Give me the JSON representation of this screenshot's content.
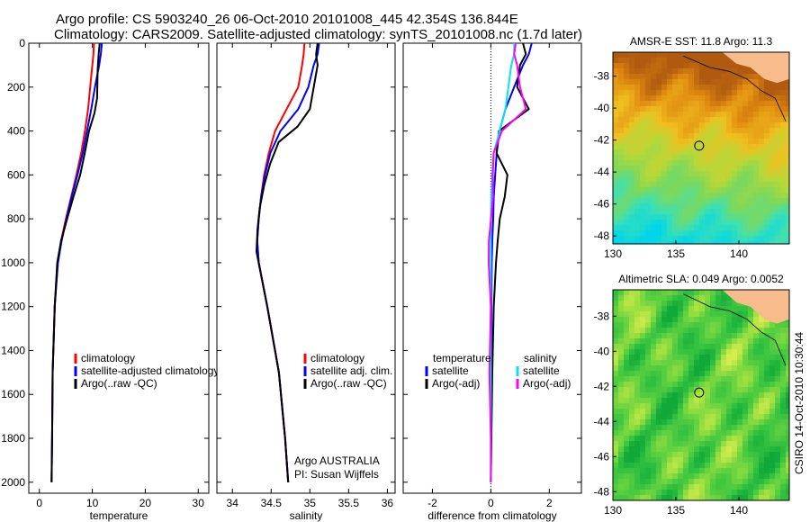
{
  "header": {
    "line1": "Argo profile: CS 5903240_26 06-Oct-2010 20101008_445 42.354S 136.844E",
    "line2": "Climatology: CARS2009. Satellite-adjusted climatology: synTS_20101008.nc (1.7d later)"
  },
  "credit": "CSIRO 14-Oct-2010 10:30:44",
  "colors": {
    "climatology": "#ff0000",
    "satellite": "#0000ff",
    "argo": "#000000",
    "salinity_satellite": "#00e5ee",
    "salinity_argo": "#ff00ff",
    "land": "#f7bb8c"
  },
  "chart_data": [
    {
      "type": "line",
      "id": "temperature",
      "xlabel": "temperature",
      "ylabel": "",
      "xlim": [
        -2,
        32
      ],
      "ylim": [
        2050,
        0
      ],
      "xticks": [
        0,
        10,
        20,
        30
      ],
      "yticks": [
        0,
        200,
        400,
        600,
        800,
        1000,
        1200,
        1400,
        1600,
        1800,
        2000
      ],
      "legend": [
        "climatology",
        "satellite-adjusted climatology",
        "Argo(..raw -QC)"
      ],
      "series": [
        {
          "name": "climatology",
          "x": [
            10.3,
            10.2,
            10.0,
            9.6,
            9.2,
            8.6,
            7.9,
            7.0,
            6.0,
            5.0,
            4.1,
            3.4,
            2.9,
            2.5,
            2.4,
            2.3
          ],
          "y": [
            0,
            50,
            100,
            200,
            300,
            400,
            500,
            600,
            700,
            800,
            900,
            1000,
            1200,
            1500,
            1800,
            2000
          ]
        },
        {
          "name": "satellite-adjusted climatology",
          "x": [
            11.8,
            11.6,
            11.3,
            10.5,
            9.8,
            9.0,
            8.2,
            7.2,
            6.1,
            5.1,
            4.2,
            3.5,
            2.9,
            2.5,
            2.4,
            2.3
          ],
          "y": [
            0,
            50,
            100,
            200,
            300,
            400,
            500,
            600,
            700,
            800,
            900,
            1000,
            1200,
            1500,
            1800,
            2000
          ]
        },
        {
          "name": "Argo(..raw -QC)",
          "x": [
            11.4,
            11.2,
            11.0,
            10.9,
            10.5,
            9.5,
            8.6,
            7.6,
            6.3,
            5.2,
            4.2,
            3.5,
            2.9,
            2.5,
            2.4,
            2.3
          ],
          "y": [
            0,
            50,
            120,
            250,
            320,
            400,
            500,
            600,
            700,
            800,
            900,
            1000,
            1200,
            1500,
            1800,
            2000
          ]
        }
      ]
    },
    {
      "type": "line",
      "id": "salinity",
      "xlabel": "salinity",
      "ylabel": "",
      "xlim": [
        33.8,
        36.1
      ],
      "ylim": [
        2050,
        0
      ],
      "xticks": [
        34,
        34.5,
        35,
        35.5,
        36
      ],
      "xticklabels": [
        "34",
        "34.5",
        "35",
        "35.5",
        "36"
      ],
      "yticks": [
        0,
        200,
        400,
        600,
        800,
        1000,
        1200,
        1400,
        1600,
        1800,
        2000
      ],
      "legend": [
        "climatology",
        "satellite adj. clim.",
        "Argo(..raw -QC)"
      ],
      "annotation": [
        "Argo AUSTRALIA",
        "PI: Susan Wijffels"
      ],
      "series": [
        {
          "name": "climatology",
          "x": [
            34.93,
            34.92,
            34.9,
            34.85,
            34.7,
            34.55,
            34.47,
            34.41,
            34.37,
            34.34,
            34.32,
            34.34,
            34.45,
            34.6,
            34.68,
            34.72
          ],
          "y": [
            0,
            50,
            100,
            200,
            300,
            400,
            500,
            600,
            700,
            800,
            900,
            1000,
            1200,
            1500,
            1800,
            2000
          ]
        },
        {
          "name": "satellite adj. clim.",
          "x": [
            35.12,
            35.1,
            35.05,
            34.98,
            34.85,
            34.62,
            34.49,
            34.42,
            34.37,
            34.34,
            34.32,
            34.34,
            34.45,
            34.6,
            34.68,
            34.72
          ],
          "y": [
            0,
            50,
            100,
            200,
            300,
            400,
            500,
            600,
            700,
            800,
            900,
            1000,
            1200,
            1500,
            1800,
            2000
          ]
        },
        {
          "name": "Argo(..raw -QC)",
          "x": [
            35.1,
            35.08,
            35.1,
            35.05,
            35.0,
            34.85,
            34.6,
            34.48,
            34.4,
            34.35,
            34.33,
            34.32,
            34.45,
            34.6,
            34.68,
            34.72
          ],
          "y": [
            0,
            50,
            100,
            200,
            300,
            380,
            450,
            550,
            650,
            750,
            850,
            950,
            1200,
            1500,
            1800,
            2000
          ]
        }
      ]
    },
    {
      "type": "line",
      "id": "difference",
      "xlabel": "difference from climatology",
      "ylabel": "",
      "xlim": [
        -3,
        3.1
      ],
      "ylim": [
        2050,
        0
      ],
      "xticks": [
        -2,
        0,
        2
      ],
      "yticks": [
        0,
        200,
        400,
        600,
        800,
        1000,
        1200,
        1400,
        1600,
        1800,
        2000
      ],
      "legend": {
        "temperature_title": "temperature",
        "temperature_items": [
          "satellite",
          "Argo(-adj)"
        ],
        "salinity_title": "salinity",
        "salinity_items": [
          "satellite",
          "Argo(-adj)"
        ]
      },
      "series": [
        {
          "name": "temperature satellite",
          "x": [
            1.4,
            1.3,
            1.1,
            0.8,
            0.5,
            0.3,
            0.2,
            0.15,
            0.1,
            0.08,
            0.05,
            0.03,
            0.02,
            0.02,
            0.01,
            0.0
          ],
          "y": [
            0,
            50,
            100,
            200,
            300,
            400,
            500,
            600,
            700,
            800,
            900,
            1000,
            1200,
            1500,
            1800,
            2000
          ]
        },
        {
          "name": "temperature Argo(-adj)",
          "x": [
            1.1,
            1.2,
            1.0,
            0.9,
            1.3,
            0.3,
            0.2,
            0.55,
            0.45,
            0.3,
            0.25,
            0.2,
            0.1,
            0.05,
            0.02,
            0.0
          ],
          "y": [
            0,
            50,
            100,
            200,
            300,
            400,
            500,
            600,
            700,
            800,
            900,
            1000,
            1200,
            1500,
            1800,
            2000
          ]
        },
        {
          "name": "salinity satellite",
          "x": [
            0.8,
            0.8,
            0.7,
            0.6,
            0.5,
            0.3,
            0.1,
            0.05,
            0.02,
            0.0,
            0.0,
            0.0,
            0.0,
            0.0,
            0.0,
            0.0
          ],
          "y": [
            0,
            50,
            100,
            200,
            300,
            400,
            500,
            600,
            700,
            800,
            900,
            1000,
            1200,
            1500,
            1800,
            2000
          ]
        },
        {
          "name": "salinity Argo(-adj)",
          "x": [
            0.85,
            0.8,
            0.9,
            1.0,
            1.2,
            0.4,
            0.1,
            0.05,
            0.05,
            0.0,
            -0.05,
            -0.05,
            0.0,
            -0.05,
            0.0,
            0.0
          ],
          "y": [
            0,
            50,
            100,
            200,
            300,
            400,
            500,
            600,
            700,
            800,
            900,
            1000,
            1200,
            1500,
            1800,
            2000
          ]
        }
      ]
    },
    {
      "type": "heatmap",
      "id": "sst-map",
      "title": "AMSR-E SST: 11.8 Argo: 11.3",
      "xlim": [
        130,
        144
      ],
      "ylim": [
        -48.5,
        -36.5
      ],
      "xticks": [
        130,
        135,
        140
      ],
      "yticks": [
        -38,
        -40,
        -42,
        -44,
        -46,
        -48
      ],
      "argo_marker": {
        "lon": 136.844,
        "lat": -42.354
      }
    },
    {
      "type": "heatmap",
      "id": "sla-map",
      "title": "Altimetric SLA: 0.049 Argo: 0.0052",
      "xlim": [
        130,
        144
      ],
      "ylim": [
        -48.5,
        -36.5
      ],
      "xticks": [
        130,
        135,
        140
      ],
      "yticks": [
        -38,
        -40,
        -42,
        -44,
        -46,
        -48
      ],
      "argo_marker": {
        "lon": 136.844,
        "lat": -42.354
      }
    }
  ]
}
